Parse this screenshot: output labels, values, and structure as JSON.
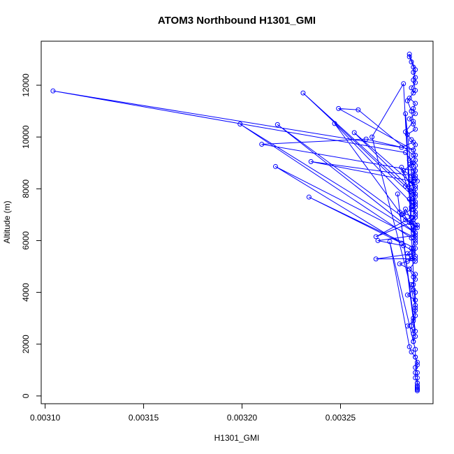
{
  "chart_data": {
    "type": "line",
    "title": "ATOM3 Northbound H1301_GMI",
    "xlabel": "H1301_GMI",
    "ylabel": "Altitude (m)",
    "xlim": [
      0.003098,
      0.003297
    ],
    "ylim": [
      -300,
      13700
    ],
    "x_ticks": [
      0.0031,
      0.00315,
      0.0032,
      0.00325
    ],
    "x_tick_labels": [
      "0.00310",
      "0.00315",
      "0.00320",
      "0.00325"
    ],
    "y_ticks": [
      0,
      2000,
      4000,
      6000,
      8000,
      10000,
      12000
    ],
    "y_tick_labels": [
      "0",
      "2000",
      "4000",
      "6000",
      "8000",
      "10000",
      "12000"
    ],
    "grid": false,
    "series_style": {
      "color": "#0000ff",
      "marker": "open-circle",
      "line": true
    },
    "series": [
      {
        "x": [
          0.003289,
          0.003289,
          0.003289,
          0.003288,
          0.003288,
          0.003289,
          0.003288,
          0.003288,
          0.003287,
          0.003287,
          0.003286,
          0.003287,
          0.003288,
          0.003288,
          0.003288,
          0.003287,
          0.003287,
          0.003285,
          0.003288,
          0.003286,
          0.003286,
          0.003288,
          0.003287,
          0.003287,
          0.003289,
          0.003287,
          0.003288,
          0.003287,
          0.003288,
          0.003287,
          0.003285,
          0.003288,
          0.003288,
          0.003286,
          0.003289,
          0.003287,
          0.003288,
          0.003288,
          0.003285,
          0.003288,
          0.003287,
          0.003288,
          0.003286,
          0.003284,
          0.003288,
          0.003287,
          0.003285,
          0.003288,
          0.003287,
          0.003288,
          0.003285,
          0.003287,
          0.003286,
          0.003288,
          0.003288,
          0.003287,
          0.003287,
          0.003286,
          0.003285,
          0.003285,
          0.003288,
          0.003287,
          0.003288,
          0.003284,
          0.003286,
          0.003287,
          0.003283,
          0.003287,
          0.003281,
          0.003104,
          0.003283,
          0.003287,
          0.003282,
          0.003288,
          0.003283,
          0.003287,
          0.003288,
          0.003286,
          0.003281,
          0.003283,
          0.003288,
          0.003287,
          0.003288,
          0.003269,
          0.003282,
          0.003287,
          0.003288,
          0.003284,
          0.003286,
          0.003284,
          0.003287,
          0.003288,
          0.003286,
          0.003199,
          0.003288,
          0.003218,
          0.003289,
          0.003285,
          0.003288,
          0.00328,
          0.003247,
          0.003288,
          0.003287,
          0.003287,
          0.003231,
          0.003286,
          0.003288,
          0.003287,
          0.003286,
          0.003288,
          0.00321,
          0.003263,
          0.003287,
          0.003249,
          0.003259,
          0.003287,
          0.003288,
          0.003286,
          0.003287,
          0.003288,
          0.003235,
          0.003286,
          0.003288,
          0.003257,
          0.003287,
          0.003288,
          0.003281,
          0.003286,
          0.003286,
          0.003288,
          0.003283,
          0.003286,
          0.003268,
          0.003286,
          0.003288,
          0.003283,
          0.003282,
          0.003288,
          0.003288,
          0.003217,
          0.003281,
          0.003234,
          0.003288,
          0.003287,
          0.003268,
          0.003288,
          0.00328,
          0.003285,
          0.003288,
          0.003288,
          0.003286,
          0.003287,
          0.003284,
          0.003288,
          0.003288,
          0.003266,
          0.003282,
          0.003288,
          0.003288,
          0.003287,
          0.003284,
          0.003288,
          0.003279,
          0.003288,
          0.003287,
          0.003275,
          0.003285,
          0.003286,
          0.003288,
          0.003289,
          0.003288,
          0.003289,
          0.003289,
          0.003289,
          0.003289,
          0.003289,
          0.003289,
          0.003289
        ],
        "y": [
          250,
          350,
          500,
          700,
          900,
          1200,
          1500,
          1800,
          2100,
          2400,
          2700,
          3000,
          3400,
          3700,
          4000,
          4300,
          4600,
          4900,
          5200,
          5400,
          5700,
          6000,
          6300,
          6500,
          6600,
          6800,
          7000,
          7200,
          7400,
          7500,
          7600,
          7800,
          8000,
          8200,
          8300,
          8500,
          8700,
          8900,
          9100,
          9300,
          9500,
          9700,
          9900,
          10100,
          10300,
          10500,
          10700,
          10900,
          11100,
          11300,
          11500,
          11700,
          11900,
          12100,
          12300,
          12500,
          12700,
          12900,
          13100,
          13200,
          12600,
          12200,
          11800,
          11400,
          11000,
          10600,
          10200,
          9800,
          9600,
          11780,
          9400,
          9000,
          8700,
          8400,
          8100,
          7800,
          7500,
          7200,
          7000,
          6800,
          6600,
          6400,
          6200,
          6000,
          5800,
          5600,
          5400,
          5200,
          5300,
          5500,
          5700,
          5900,
          6100,
          10500,
          6300,
          10480,
          6500,
          6700,
          6900,
          7100,
          10520,
          7300,
          7500,
          7700,
          11700,
          7900,
          8100,
          8300,
          8500,
          8700,
          9720,
          9920,
          9500,
          11100,
          11050,
          9300,
          9100,
          8900,
          8700,
          8500,
          9050,
          8300,
          8100,
          10170,
          7900,
          7700,
          8830,
          7500,
          7300,
          7100,
          10900,
          6900,
          6150,
          6700,
          6500,
          7220,
          7040,
          6300,
          6100,
          8860,
          5900,
          7680,
          5700,
          5500,
          5290,
          5300,
          5100,
          4900,
          4700,
          4500,
          4300,
          4100,
          3900,
          3700,
          3500,
          10000,
          12060,
          3300,
          3100,
          2900,
          2700,
          2500,
          7800,
          2300,
          2100,
          5960,
          1900,
          1700,
          1500,
          1300,
          1100,
          900,
          700,
          500,
          400,
          300,
          250,
          200
        ]
      }
    ]
  }
}
